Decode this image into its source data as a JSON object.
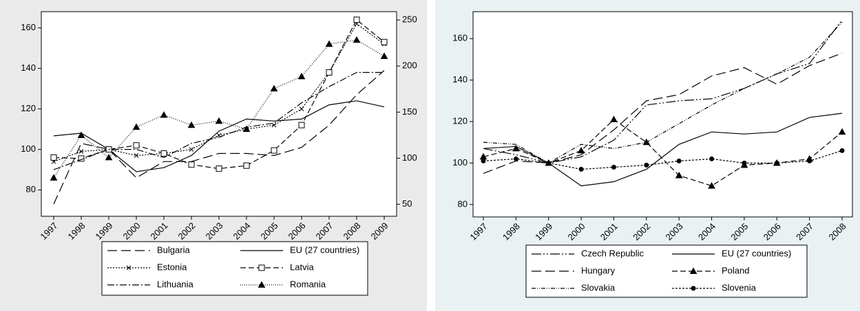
{
  "chart_data": [
    {
      "type": "line",
      "categories": [
        "1997",
        "1998",
        "1999",
        "2000",
        "2001",
        "2002",
        "2003",
        "2004",
        "2005",
        "2006",
        "2007",
        "2008",
        "2009"
      ],
      "ylim": [
        67,
        168
      ],
      "yticks": [
        80,
        100,
        120,
        140,
        160
      ],
      "y2lim": [
        37,
        259
      ],
      "y2ticks": [
        50,
        100,
        150,
        200,
        250
      ],
      "grid": false,
      "background": "#eaeaea",
      "series": [
        {
          "name": "Bulgaria",
          "color": "#000000",
          "dash": "long-dash",
          "marker": "none",
          "values": [
            73,
            103,
            100,
            86,
            94,
            94,
            98,
            98,
            97,
            101,
            112,
            127,
            139
          ]
        },
        {
          "name": "EU (27 countries)",
          "color": "#000000",
          "dash": "solid",
          "marker": "none",
          "values": [
            106.7,
            108,
            100,
            89,
            91,
            97,
            109,
            115,
            114,
            115,
            122,
            124,
            121
          ]
        },
        {
          "name": "Estonia",
          "color": "#000000",
          "dash": "dot",
          "marker": "x",
          "values": [
            94,
            99,
            100,
            97,
            98,
            100,
            107,
            110,
            112,
            120,
            138,
            162,
            152
          ]
        },
        {
          "name": "Latvia",
          "color": "#000000",
          "dash": "dash",
          "marker": "square",
          "values": [
            96,
            95.5,
            100,
            102,
            98,
            92.5,
            90.5,
            92,
            99.5,
            112,
            138,
            164,
            153
          ]
        },
        {
          "name": "Lithuania",
          "color": "#000000",
          "dash": "dash-dot",
          "marker": "none",
          "values": [
            90,
            95,
            100,
            100,
            96,
            103,
            106,
            111,
            113,
            123,
            131,
            138,
            138
          ]
        },
        {
          "name": "Romania",
          "color": "#000000",
          "dash": "fine-dot",
          "marker": "triangle",
          "values": [
            86,
            107,
            96,
            111,
            117,
            112,
            114,
            110,
            130,
            136,
            152,
            154,
            146
          ]
        }
      ]
    },
    {
      "type": "line",
      "categories": [
        "1997",
        "1998",
        "1999",
        "2000",
        "2001",
        "2002",
        "2003",
        "2004",
        "2005",
        "2006",
        "2007",
        "2008"
      ],
      "ylim": [
        74,
        173
      ],
      "yticks": [
        80,
        100,
        120,
        140,
        160
      ],
      "grid": false,
      "background": "#e9f1f3",
      "series": [
        {
          "name": "Czech Republic",
          "color": "#000000",
          "dash": "dash-dot-dot",
          "marker": "none",
          "values": [
            107,
            104,
            100,
            103,
            111,
            128,
            130,
            131,
            136,
            143,
            148,
            169
          ]
        },
        {
          "name": "EU (27 countries)",
          "color": "#000000",
          "dash": "solid",
          "marker": "none",
          "values": [
            107,
            108,
            100,
            89,
            91,
            97,
            109,
            115,
            114,
            115,
            122,
            124
          ]
        },
        {
          "name": "Hungary",
          "color": "#000000",
          "dash": "long-dash",
          "marker": "none",
          "values": [
            95,
            101,
            100,
            104,
            116,
            130,
            133,
            142,
            146,
            138,
            147,
            153
          ]
        },
        {
          "name": "Poland",
          "color": "#000000",
          "dash": "dash",
          "marker": "triangle",
          "values": [
            103,
            107,
            100,
            106,
            121,
            110,
            94,
            89,
            99,
            100,
            102,
            115
          ]
        },
        {
          "name": "Slovakia",
          "color": "#000000",
          "dash": "dash-dot-fine",
          "marker": "none",
          "values": [
            110,
            109,
            100,
            109,
            107,
            110,
            119,
            128,
            136,
            143,
            151,
            168
          ]
        },
        {
          "name": "Slovenia",
          "color": "#000000",
          "dash": "short-dash",
          "marker": "circle",
          "values": [
            101,
            102,
            100,
            97,
            98,
            99,
            101,
            102,
            100,
            100,
            101,
            106
          ]
        }
      ]
    }
  ]
}
